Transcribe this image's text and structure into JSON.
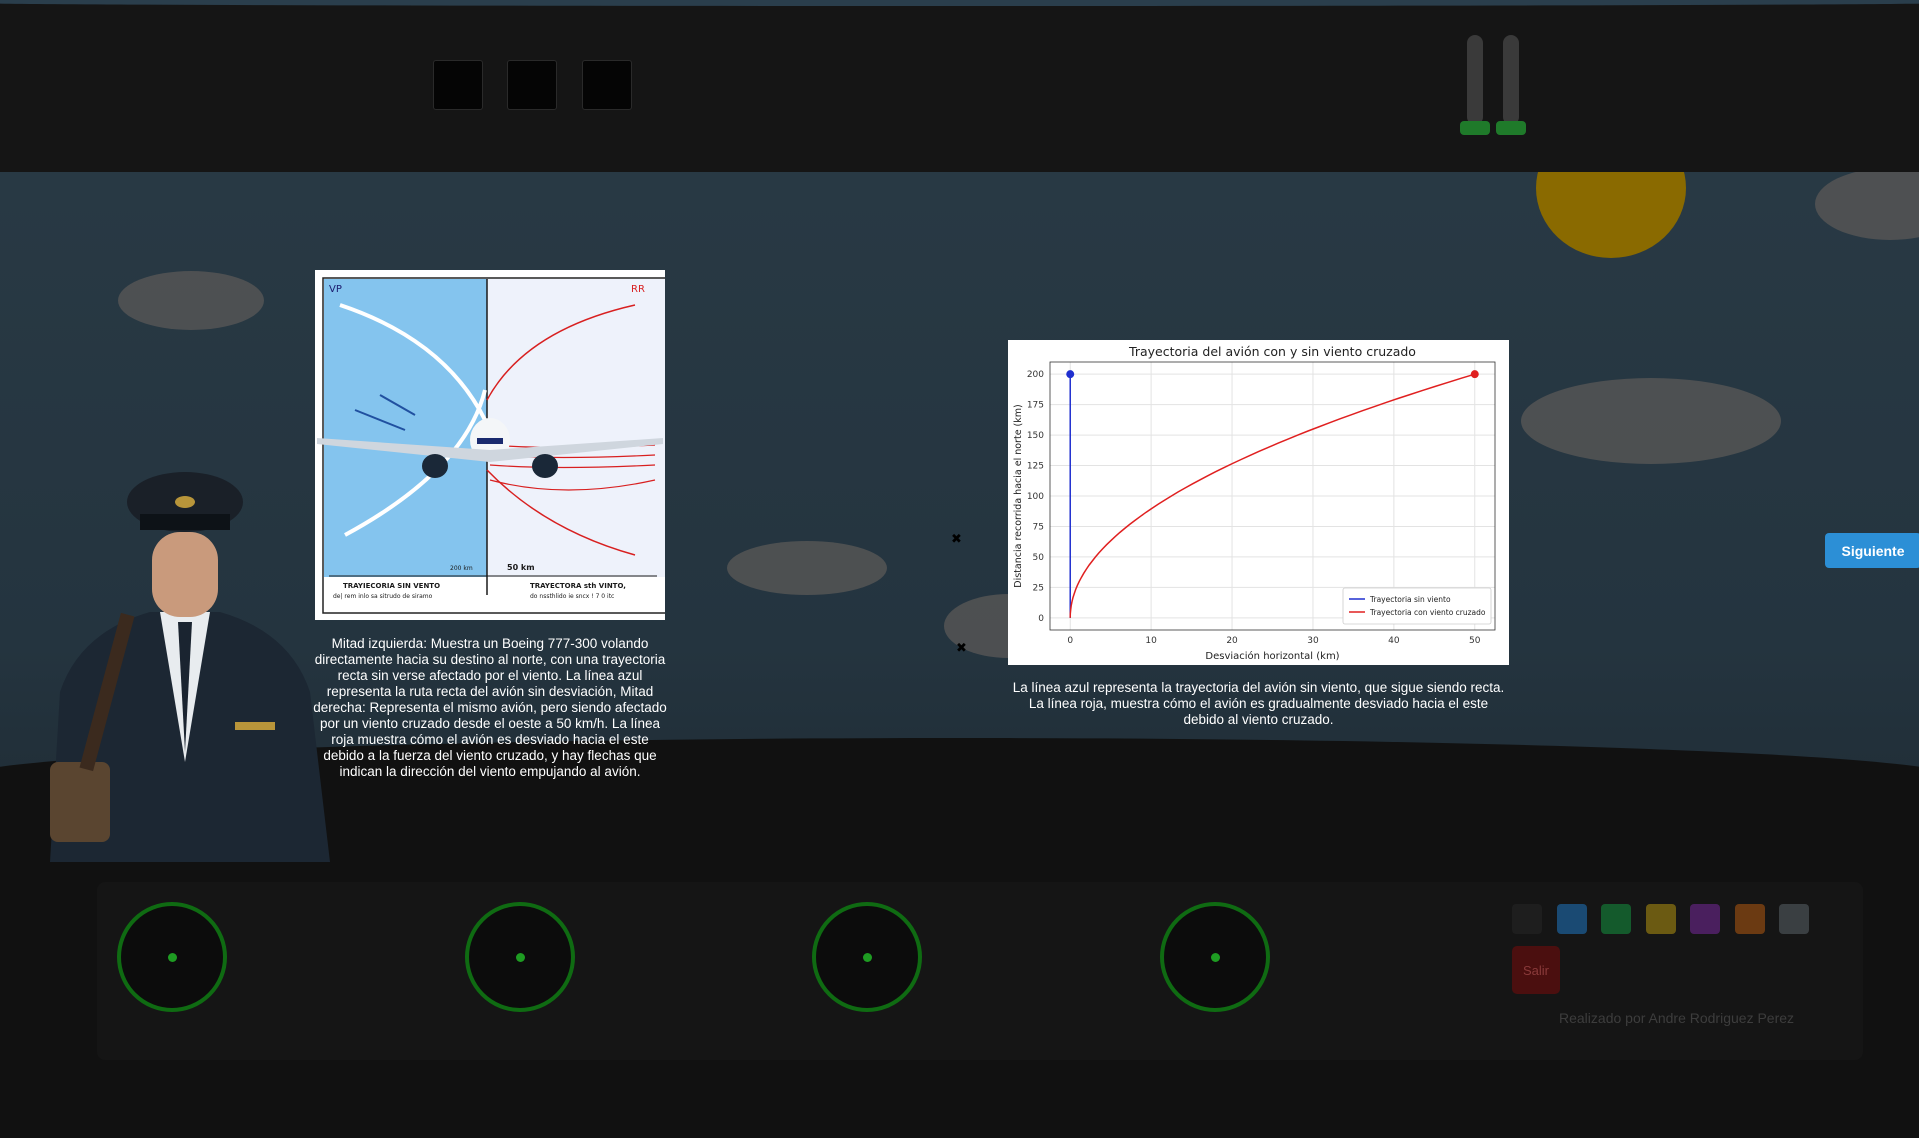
{
  "window": {
    "next_label": "Siguiente",
    "exit_label": "Salir",
    "credit": "Realizado por Andre Rodriguez Perez"
  },
  "colors": {
    "accent": "#2c8fd6",
    "gauge": "#0f6b12",
    "exit": "#4b0f0f",
    "swatches": [
      "#1e1e1e",
      "#1a4a73",
      "#145a2c",
      "#6b5a12",
      "#4a1f5e",
      "#6b3a12",
      "#3a3f42"
    ]
  },
  "left_card": {
    "labels": {
      "top_left": "VP",
      "top_right": "RR",
      "dist_left": "200 km",
      "dist_right": "50 km",
      "title_left": "TRAYIECORIA SIN VENTO",
      "sub_left": "de| rem inlo sa sitrudo de siramo",
      "title_right": "TRAYECTORA sth VINTO,",
      "sub_right": "do nssthlido ie sncx ! 7 0 itc"
    },
    "caption": "Mitad izquierda: Muestra un Boeing 777-300 volando directamente hacia su destino al norte, con una trayectoria recta sin verse afectado por el viento. La línea azul representa la ruta recta del avión sin desviación, Mitad derecha: Representa el mismo avión, pero siendo afectado por un viento cruzado desde el oeste a 50 km/h. La línea roja muestra cómo el avión es desviado hacia el este debido a la fuerza del viento cruzado, y hay flechas que indican la dirección del viento empujando al avión."
  },
  "right_card": {
    "caption": "La línea azul representa la trayectoria del avión sin viento, que sigue siendo recta. La línea roja, muestra cómo el avión es gradualmente desviado hacia el este debido al viento cruzado."
  },
  "chart_data": {
    "type": "line",
    "title": "Trayectoria del avión con y sin viento cruzado",
    "xlabel": "Desviación horizontal (km)",
    "ylabel": "Distancia recorrida hacia el norte (km)",
    "xlim": [
      -2.5,
      52.5
    ],
    "ylim": [
      -10,
      210
    ],
    "xticks": [
      0,
      10,
      20,
      30,
      40,
      50
    ],
    "yticks": [
      0,
      25,
      50,
      75,
      100,
      125,
      150,
      175,
      200
    ],
    "grid": true,
    "legend_position": "bottom-right",
    "series": [
      {
        "name": "Trayectoria sin viento",
        "color": "#1f2fcf",
        "x": [
          0,
          0
        ],
        "y": [
          0,
          200
        ],
        "end_marker": [
          0,
          200
        ]
      },
      {
        "name": "Trayectoria con viento cruzado",
        "color": "#e02020",
        "x": [
          0,
          0.5,
          2,
          4.5,
          8,
          12.5,
          18,
          24.5,
          32,
          40.5,
          50
        ],
        "y": [
          0,
          20,
          40,
          60,
          80,
          100,
          120,
          140,
          160,
          180,
          200
        ],
        "end_marker": [
          50,
          200
        ]
      }
    ]
  }
}
